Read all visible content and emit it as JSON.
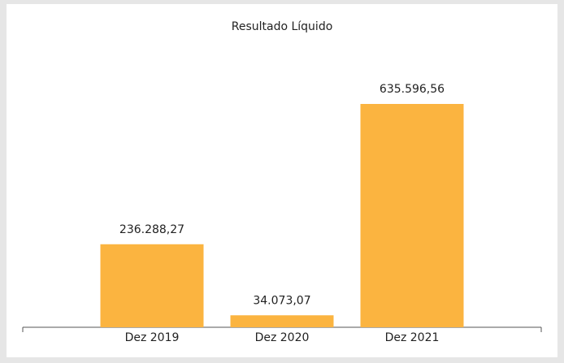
{
  "chart_data": {
    "type": "bar",
    "title": "Resultado Líquido",
    "categories": [
      "Dez 2019",
      "Dez 2020",
      "Dez 2021"
    ],
    "values": [
      236288.27,
      34073.07,
      635596.56
    ],
    "value_labels": [
      "236.288,27",
      "34.073,07",
      "635.596,56"
    ],
    "color": "#fbb440"
  }
}
